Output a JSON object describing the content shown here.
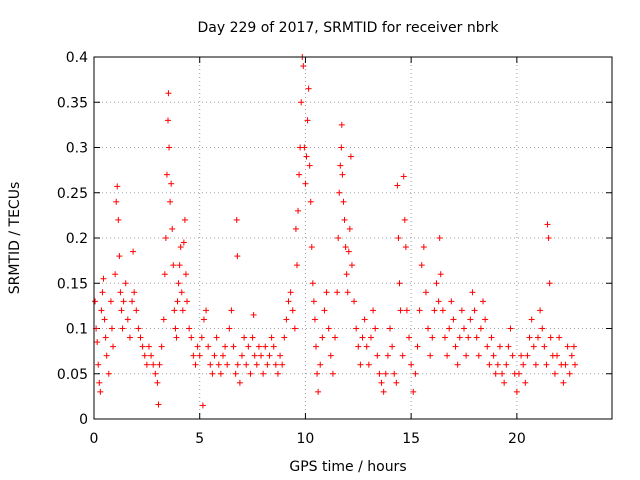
{
  "chart_data": {
    "type": "scatter",
    "title": "Day 229 of 2017, SRMTID for receiver nbrk",
    "xlabel": "GPS time / hours",
    "ylabel": "SRMTID / TECUs",
    "xlim": [
      0,
      24.5
    ],
    "ylim": [
      0,
      0.4
    ],
    "xticks": [
      0,
      5,
      10,
      15,
      20
    ],
    "xtick_labels": [
      "0",
      "5",
      "10",
      "15",
      "20"
    ],
    "yticks": [
      0,
      0.05,
      0.1,
      0.15,
      0.2,
      0.25,
      0.3,
      0.35,
      0.4
    ],
    "ytick_labels": [
      "0",
      "0.05",
      "0.1",
      "0.15",
      "0.2",
      "0.25",
      "0.3",
      "0.35",
      "0.4"
    ],
    "grid": true,
    "marker": "plus",
    "marker_color": "#ff0000",
    "series": [
      {
        "name": "SRMTID",
        "points": [
          [
            0.05,
            0.13
          ],
          [
            0.1,
            0.1
          ],
          [
            0.15,
            0.085
          ],
          [
            0.2,
            0.06
          ],
          [
            0.25,
            0.04
          ],
          [
            0.3,
            0.03
          ],
          [
            0.35,
            0.12
          ],
          [
            0.4,
            0.14
          ],
          [
            0.45,
            0.155
          ],
          [
            0.5,
            0.11
          ],
          [
            0.55,
            0.09
          ],
          [
            0.6,
            0.07
          ],
          [
            0.7,
            0.05
          ],
          [
            0.8,
            0.13
          ],
          [
            0.85,
            0.1
          ],
          [
            0.9,
            0.08
          ],
          [
            1.0,
            0.16
          ],
          [
            1.05,
            0.24
          ],
          [
            1.1,
            0.257
          ],
          [
            1.15,
            0.22
          ],
          [
            1.2,
            0.18
          ],
          [
            1.25,
            0.14
          ],
          [
            1.3,
            0.12
          ],
          [
            1.35,
            0.1
          ],
          [
            1.4,
            0.13
          ],
          [
            1.5,
            0.15
          ],
          [
            1.6,
            0.11
          ],
          [
            1.7,
            0.09
          ],
          [
            1.8,
            0.13
          ],
          [
            1.85,
            0.185
          ],
          [
            1.9,
            0.14
          ],
          [
            2.0,
            0.12
          ],
          [
            2.1,
            0.1
          ],
          [
            2.2,
            0.09
          ],
          [
            2.3,
            0.08
          ],
          [
            2.4,
            0.07
          ],
          [
            2.5,
            0.06
          ],
          [
            2.6,
            0.08
          ],
          [
            2.7,
            0.07
          ],
          [
            2.8,
            0.06
          ],
          [
            2.9,
            0.05
          ],
          [
            3.0,
            0.04
          ],
          [
            3.05,
            0.016
          ],
          [
            3.1,
            0.06
          ],
          [
            3.2,
            0.08
          ],
          [
            3.3,
            0.11
          ],
          [
            3.35,
            0.16
          ],
          [
            3.4,
            0.2
          ],
          [
            3.45,
            0.27
          ],
          [
            3.5,
            0.33
          ],
          [
            3.52,
            0.36
          ],
          [
            3.55,
            0.3
          ],
          [
            3.6,
            0.24
          ],
          [
            3.65,
            0.26
          ],
          [
            3.7,
            0.21
          ],
          [
            3.75,
            0.17
          ],
          [
            3.8,
            0.12
          ],
          [
            3.85,
            0.1
          ],
          [
            3.9,
            0.09
          ],
          [
            3.95,
            0.13
          ],
          [
            4.0,
            0.15
          ],
          [
            4.05,
            0.17
          ],
          [
            4.1,
            0.19
          ],
          [
            4.15,
            0.14
          ],
          [
            4.2,
            0.12
          ],
          [
            4.25,
            0.195
          ],
          [
            4.3,
            0.22
          ],
          [
            4.35,
            0.16
          ],
          [
            4.4,
            0.13
          ],
          [
            4.5,
            0.1
          ],
          [
            4.6,
            0.09
          ],
          [
            4.7,
            0.07
          ],
          [
            4.8,
            0.06
          ],
          [
            4.9,
            0.08
          ],
          [
            5.0,
            0.07
          ],
          [
            5.1,
            0.09
          ],
          [
            5.15,
            0.015
          ],
          [
            5.2,
            0.11
          ],
          [
            5.3,
            0.12
          ],
          [
            5.4,
            0.08
          ],
          [
            5.5,
            0.06
          ],
          [
            5.6,
            0.05
          ],
          [
            5.7,
            0.07
          ],
          [
            5.8,
            0.09
          ],
          [
            5.9,
            0.06
          ],
          [
            6.0,
            0.05
          ],
          [
            6.1,
            0.07
          ],
          [
            6.2,
            0.08
          ],
          [
            6.3,
            0.06
          ],
          [
            6.4,
            0.1
          ],
          [
            6.5,
            0.12
          ],
          [
            6.6,
            0.08
          ],
          [
            6.7,
            0.05
          ],
          [
            6.75,
            0.22
          ],
          [
            6.78,
            0.18
          ],
          [
            6.8,
            0.06
          ],
          [
            6.9,
            0.04
          ],
          [
            7.0,
            0.07
          ],
          [
            7.1,
            0.09
          ],
          [
            7.2,
            0.06
          ],
          [
            7.3,
            0.08
          ],
          [
            7.4,
            0.05
          ],
          [
            7.5,
            0.09
          ],
          [
            7.55,
            0.115
          ],
          [
            7.6,
            0.07
          ],
          [
            7.7,
            0.06
          ],
          [
            7.8,
            0.08
          ],
          [
            7.9,
            0.07
          ],
          [
            8.0,
            0.05
          ],
          [
            8.1,
            0.08
          ],
          [
            8.2,
            0.06
          ],
          [
            8.3,
            0.07
          ],
          [
            8.4,
            0.09
          ],
          [
            8.5,
            0.08
          ],
          [
            8.6,
            0.06
          ],
          [
            8.7,
            0.05
          ],
          [
            8.8,
            0.07
          ],
          [
            8.9,
            0.06
          ],
          [
            9.0,
            0.09
          ],
          [
            9.1,
            0.11
          ],
          [
            9.2,
            0.13
          ],
          [
            9.3,
            0.14
          ],
          [
            9.4,
            0.12
          ],
          [
            9.5,
            0.1
          ],
          [
            9.55,
            0.21
          ],
          [
            9.6,
            0.17
          ],
          [
            9.65,
            0.23
          ],
          [
            9.7,
            0.27
          ],
          [
            9.75,
            0.3
          ],
          [
            9.8,
            0.35
          ],
          [
            9.85,
            0.4
          ],
          [
            9.9,
            0.39
          ],
          [
            9.95,
            0.3
          ],
          [
            10.0,
            0.26
          ],
          [
            10.05,
            0.29
          ],
          [
            10.1,
            0.33
          ],
          [
            10.15,
            0.365
          ],
          [
            10.2,
            0.28
          ],
          [
            10.25,
            0.24
          ],
          [
            10.3,
            0.19
          ],
          [
            10.35,
            0.15
          ],
          [
            10.4,
            0.13
          ],
          [
            10.45,
            0.11
          ],
          [
            10.5,
            0.08
          ],
          [
            10.55,
            0.05
          ],
          [
            10.6,
            0.03
          ],
          [
            10.7,
            0.06
          ],
          [
            10.8,
            0.09
          ],
          [
            10.9,
            0.12
          ],
          [
            11.0,
            0.14
          ],
          [
            11.1,
            0.1
          ],
          [
            11.2,
            0.07
          ],
          [
            11.3,
            0.05
          ],
          [
            11.4,
            0.09
          ],
          [
            11.5,
            0.14
          ],
          [
            11.55,
            0.2
          ],
          [
            11.6,
            0.25
          ],
          [
            11.65,
            0.28
          ],
          [
            11.7,
            0.3
          ],
          [
            11.72,
            0.325
          ],
          [
            11.75,
            0.27
          ],
          [
            11.8,
            0.24
          ],
          [
            11.85,
            0.22
          ],
          [
            11.9,
            0.19
          ],
          [
            11.95,
            0.16
          ],
          [
            12.0,
            0.14
          ],
          [
            12.05,
            0.185
          ],
          [
            12.1,
            0.21
          ],
          [
            12.15,
            0.29
          ],
          [
            12.2,
            0.17
          ],
          [
            12.3,
            0.13
          ],
          [
            12.4,
            0.1
          ],
          [
            12.5,
            0.08
          ],
          [
            12.6,
            0.06
          ],
          [
            12.7,
            0.09
          ],
          [
            12.8,
            0.11
          ],
          [
            12.9,
            0.08
          ],
          [
            13.0,
            0.06
          ],
          [
            13.1,
            0.09
          ],
          [
            13.2,
            0.12
          ],
          [
            13.3,
            0.1
          ],
          [
            13.4,
            0.07
          ],
          [
            13.5,
            0.05
          ],
          [
            13.6,
            0.04
          ],
          [
            13.7,
            0.03
          ],
          [
            13.8,
            0.05
          ],
          [
            13.9,
            0.07
          ],
          [
            14.0,
            0.1
          ],
          [
            14.1,
            0.08
          ],
          [
            14.2,
            0.05
          ],
          [
            14.3,
            0.04
          ],
          [
            14.35,
            0.258
          ],
          [
            14.4,
            0.2
          ],
          [
            14.45,
            0.15
          ],
          [
            14.5,
            0.12
          ],
          [
            14.6,
            0.07
          ],
          [
            14.65,
            0.268
          ],
          [
            14.7,
            0.22
          ],
          [
            14.75,
            0.19
          ],
          [
            14.8,
            0.12
          ],
          [
            14.9,
            0.09
          ],
          [
            15.0,
            0.06
          ],
          [
            15.1,
            0.03
          ],
          [
            15.2,
            0.05
          ],
          [
            15.3,
            0.08
          ],
          [
            15.4,
            0.12
          ],
          [
            15.5,
            0.17
          ],
          [
            15.6,
            0.19
          ],
          [
            15.7,
            0.14
          ],
          [
            15.8,
            0.1
          ],
          [
            15.9,
            0.07
          ],
          [
            16.0,
            0.09
          ],
          [
            16.1,
            0.12
          ],
          [
            16.2,
            0.15
          ],
          [
            16.3,
            0.13
          ],
          [
            16.35,
            0.2
          ],
          [
            16.4,
            0.16
          ],
          [
            16.5,
            0.12
          ],
          [
            16.6,
            0.09
          ],
          [
            16.7,
            0.07
          ],
          [
            16.8,
            0.1
          ],
          [
            16.9,
            0.13
          ],
          [
            17.0,
            0.11
          ],
          [
            17.1,
            0.08
          ],
          [
            17.2,
            0.06
          ],
          [
            17.3,
            0.09
          ],
          [
            17.4,
            0.12
          ],
          [
            17.5,
            0.1
          ],
          [
            17.6,
            0.07
          ],
          [
            17.7,
            0.09
          ],
          [
            17.8,
            0.11
          ],
          [
            17.9,
            0.14
          ],
          [
            18.0,
            0.12
          ],
          [
            18.1,
            0.09
          ],
          [
            18.2,
            0.07
          ],
          [
            18.3,
            0.1
          ],
          [
            18.4,
            0.13
          ],
          [
            18.5,
            0.11
          ],
          [
            18.6,
            0.08
          ],
          [
            18.7,
            0.06
          ],
          [
            18.8,
            0.09
          ],
          [
            18.9,
            0.07
          ],
          [
            19.0,
            0.05
          ],
          [
            19.1,
            0.06
          ],
          [
            19.2,
            0.08
          ],
          [
            19.3,
            0.05
          ],
          [
            19.4,
            0.04
          ],
          [
            19.5,
            0.06
          ],
          [
            19.6,
            0.08
          ],
          [
            19.7,
            0.1
          ],
          [
            19.8,
            0.07
          ],
          [
            19.9,
            0.05
          ],
          [
            20.0,
            0.03
          ],
          [
            20.1,
            0.05
          ],
          [
            20.2,
            0.07
          ],
          [
            20.3,
            0.06
          ],
          [
            20.4,
            0.04
          ],
          [
            20.5,
            0.07
          ],
          [
            20.6,
            0.09
          ],
          [
            20.7,
            0.11
          ],
          [
            20.8,
            0.08
          ],
          [
            20.9,
            0.06
          ],
          [
            21.0,
            0.09
          ],
          [
            21.1,
            0.12
          ],
          [
            21.2,
            0.1
          ],
          [
            21.3,
            0.08
          ],
          [
            21.4,
            0.06
          ],
          [
            21.45,
            0.215
          ],
          [
            21.5,
            0.2
          ],
          [
            21.55,
            0.15
          ],
          [
            21.6,
            0.09
          ],
          [
            21.7,
            0.07
          ],
          [
            21.8,
            0.05
          ],
          [
            21.9,
            0.07
          ],
          [
            22.0,
            0.09
          ],
          [
            22.1,
            0.06
          ],
          [
            22.2,
            0.04
          ],
          [
            22.3,
            0.06
          ],
          [
            22.4,
            0.08
          ],
          [
            22.5,
            0.05
          ],
          [
            22.6,
            0.07
          ],
          [
            22.7,
            0.08
          ],
          [
            22.75,
            0.06
          ]
        ]
      }
    ]
  }
}
